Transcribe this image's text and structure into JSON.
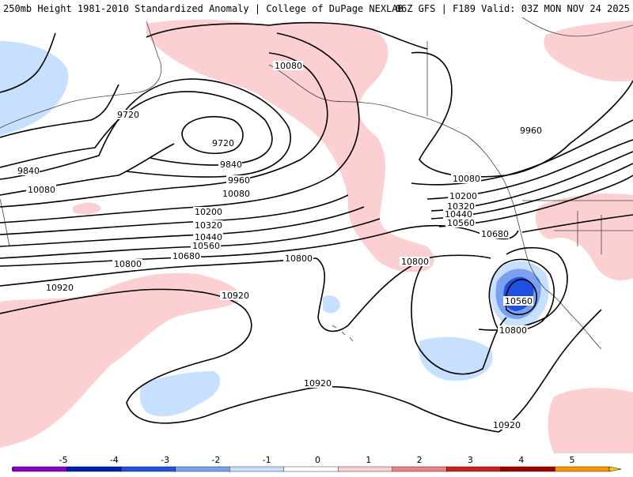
{
  "header": {
    "left_title": "250mb Height 1981-2010 Standardized Anomaly | College of DuPage NEXLAB",
    "right_title": "06Z GFS | F189 Valid: 03Z MON NOV 24 2025"
  },
  "contour_labels": [
    "9720",
    "9720",
    "9840",
    "9840",
    "9960",
    "9960",
    "10080",
    "10080",
    "10080",
    "10080",
    "10200",
    "10200",
    "10320",
    "10320",
    "10440",
    "10440",
    "10560",
    "10560",
    "10560",
    "10680",
    "10680",
    "10800",
    "10800",
    "10800",
    "10800",
    "10920",
    "10920",
    "10920",
    "10920"
  ],
  "colorbar": {
    "ticks": [
      "-5",
      "-4",
      "-3",
      "-2",
      "-1",
      "0",
      "1",
      "2",
      "3",
      "4",
      "5"
    ],
    "colors": [
      "#d860e0",
      "#8a00c8",
      "#0020b0",
      "#2050e0",
      "#7aa0f0",
      "#c8e0ff",
      "#ffffff",
      "#ffd0d0",
      "#f08080",
      "#d02020",
      "#a00000",
      "#ff9000",
      "#ffd000"
    ]
  }
}
